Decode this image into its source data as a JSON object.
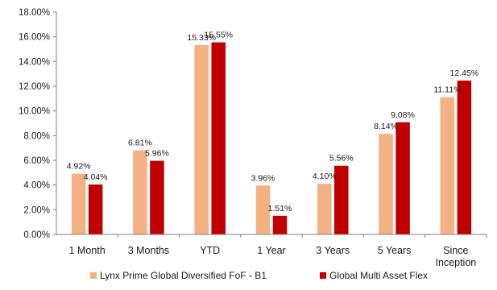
{
  "chart_data": {
    "type": "bar",
    "categories": [
      "1 Month",
      "3 Months",
      "YTD",
      "1 Year",
      "3 Years",
      "5 Years",
      "Since Inception"
    ],
    "series": [
      {
        "name": "Lynx Prime Global Diversified FoF - B1",
        "color": "#f4b183",
        "values": [
          4.92,
          6.81,
          15.33,
          3.96,
          4.1,
          8.14,
          11.11
        ],
        "labels": [
          "4.92%",
          "6.81%",
          "15.33%",
          "3.96%",
          "4.10%",
          "8.14%",
          "11.11%"
        ]
      },
      {
        "name": "Global Multi Asset Flex",
        "color": "#c00000",
        "values": [
          4.04,
          5.96,
          15.55,
          1.51,
          5.56,
          9.08,
          12.45
        ],
        "labels": [
          "4.04%",
          "5.96%",
          "15.55%",
          "1.51%",
          "5.56%",
          "9.08%",
          "12.45%"
        ]
      }
    ],
    "ylim": [
      0,
      18
    ],
    "ytick_labels": [
      "0.00%",
      "2.00%",
      "4.00%",
      "6.00%",
      "8.00%",
      "10.00%",
      "12.00%",
      "14.00%",
      "16.00%",
      "18.00%"
    ],
    "grid": false,
    "legend_position": "bottom"
  }
}
